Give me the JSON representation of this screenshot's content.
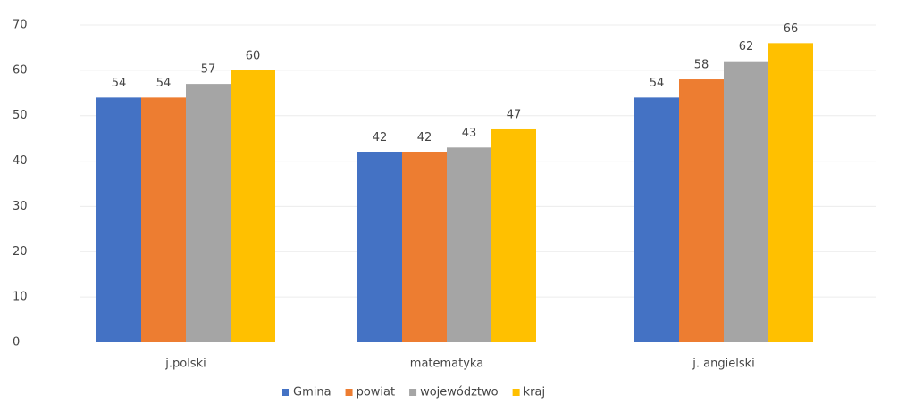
{
  "chart_data": {
    "type": "bar",
    "categories": [
      "j.polski",
      "matematyka",
      "j. angielski"
    ],
    "series": [
      {
        "name": "Gmina",
        "color": "#4472c4",
        "values": [
          54,
          42,
          54
        ]
      },
      {
        "name": "powiat",
        "color": "#ed7d31",
        "values": [
          54,
          42,
          58
        ]
      },
      {
        "name": "województwo",
        "color": "#a5a5a5",
        "values": [
          57,
          43,
          62
        ]
      },
      {
        "name": "kraj",
        "color": "#ffc000",
        "values": [
          60,
          47,
          66
        ]
      }
    ],
    "ylim": [
      0,
      70
    ],
    "yticks": [
      0,
      10,
      20,
      30,
      40,
      50,
      60,
      70
    ],
    "grid": true,
    "legend": "bottom"
  }
}
